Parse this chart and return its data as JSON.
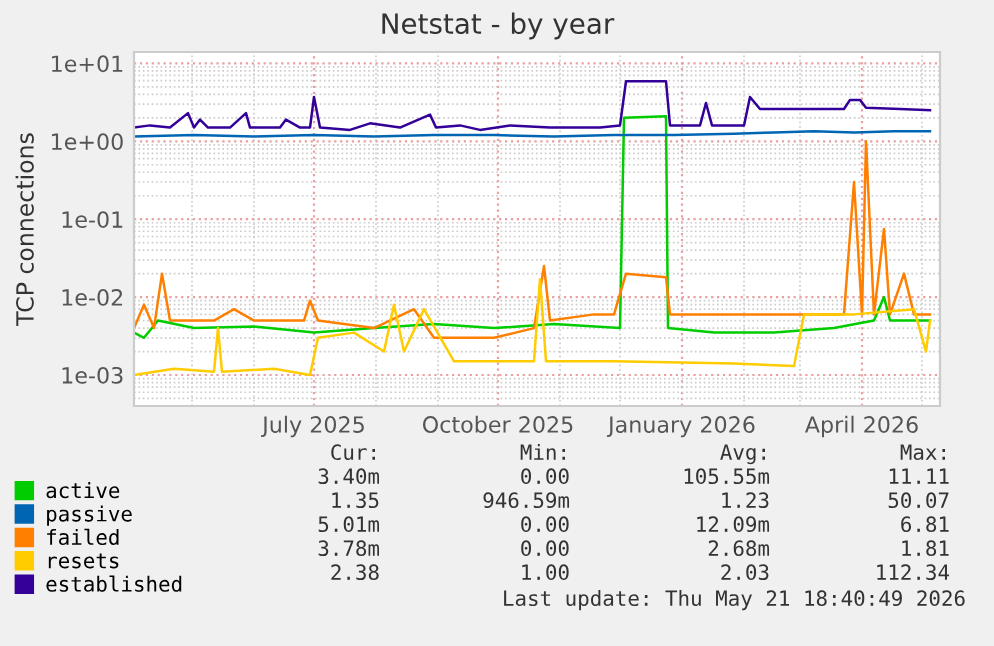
{
  "chart_data": {
    "type": "line",
    "title": "Netstat - by year",
    "ylabel": "TCP connections",
    "log": "y",
    "grid": true,
    "legend": "bottom left",
    "marker": "none",
    "line_style": "solid",
    "xlim": [
      "2025-04-02",
      "2026-05-10"
    ],
    "xticks": [
      {
        "value": "2025-07-01",
        "label": "July 2025"
      },
      {
        "value": "2025-10-01",
        "label": "October 2025"
      },
      {
        "value": "2026-01-01",
        "label": "January 2026"
      },
      {
        "value": "2026-04-01",
        "label": "April 2026"
      }
    ],
    "ylim": [
      0.0004,
      14
    ],
    "yticks": [
      {
        "value": 10,
        "label": "1e+01"
      },
      {
        "value": 1,
        "label": "1e+00"
      },
      {
        "value": 0.1,
        "label": "1e-01"
      },
      {
        "value": 0.01,
        "label": "1e-02"
      },
      {
        "value": 0.001,
        "label": "1e-03"
      }
    ],
    "series": [
      {
        "name": "active",
        "color": "#00cc00",
        "x": [
          "2025-04-02",
          "2025-04-07",
          "2025-04-14",
          "2025-05-02",
          "2025-06-01",
          "2025-07-01",
          "2025-07-31",
          "2025-08-30",
          "2025-09-29",
          "2025-10-29",
          "2025-12-01",
          "2025-12-03",
          "2025-12-24",
          "2025-12-25",
          "2026-01-17",
          "2026-02-16",
          "2026-03-18",
          "2026-04-07",
          "2026-04-12",
          "2026-04-15",
          "2026-05-05"
        ],
        "values": [
          0.0035,
          0.003,
          0.005,
          0.004,
          0.0042,
          0.0035,
          0.004,
          0.0045,
          0.004,
          0.0045,
          0.004,
          2.0,
          2.1,
          0.004,
          0.0035,
          0.0035,
          0.004,
          0.005,
          0.01,
          0.005,
          0.005
        ]
      },
      {
        "name": "passive",
        "color": "#0066b3",
        "x": [
          "2025-04-02",
          "2025-05-02",
          "2025-06-01",
          "2025-07-01",
          "2025-07-31",
          "2025-08-30",
          "2025-09-29",
          "2025-10-29",
          "2025-11-28",
          "2025-12-28",
          "2026-01-27",
          "2026-02-16",
          "2026-03-08",
          "2026-03-28",
          "2026-04-17",
          "2026-05-05"
        ],
        "values": [
          1.15,
          1.2,
          1.15,
          1.2,
          1.15,
          1.2,
          1.2,
          1.15,
          1.2,
          1.2,
          1.25,
          1.3,
          1.35,
          1.3,
          1.35,
          1.35
        ]
      },
      {
        "name": "failed",
        "color": "#ff8000",
        "x": [
          "2025-04-02",
          "2025-04-07",
          "2025-04-12",
          "2025-04-16",
          "2025-04-20",
          "2025-05-12",
          "2025-05-22",
          "2025-06-01",
          "2025-06-26",
          "2025-06-29",
          "2025-07-03",
          "2025-07-31",
          "2025-08-20",
          "2025-08-30",
          "2025-09-29",
          "2025-10-19",
          "2025-10-24",
          "2025-10-27",
          "2025-11-18",
          "2025-11-28",
          "2025-12-04",
          "2025-12-24",
          "2025-12-26",
          "2026-01-27",
          "2026-02-26",
          "2026-03-23",
          "2026-03-28",
          "2026-04-01",
          "2026-04-03",
          "2026-04-07",
          "2026-04-12",
          "2026-04-15",
          "2026-04-22",
          "2026-04-27",
          "2026-05-05"
        ],
        "values": [
          0.004,
          0.008,
          0.004,
          0.02,
          0.005,
          0.005,
          0.007,
          0.005,
          0.005,
          0.009,
          0.005,
          0.004,
          0.007,
          0.003,
          0.003,
          0.004,
          0.025,
          0.005,
          0.006,
          0.006,
          0.02,
          0.018,
          0.006,
          0.006,
          0.006,
          0.006,
          0.3,
          0.006,
          1.0,
          0.006,
          0.075,
          0.006,
          0.02,
          0.006,
          0.006
        ]
      },
      {
        "name": "resets",
        "color": "#ffcc00",
        "x": [
          "2025-04-02",
          "2025-04-22",
          "2025-05-12",
          "2025-05-14",
          "2025-05-16",
          "2025-06-11",
          "2025-06-29",
          "2025-07-03",
          "2025-07-21",
          "2025-08-05",
          "2025-08-10",
          "2025-08-15",
          "2025-08-25",
          "2025-09-09",
          "2025-10-04",
          "2025-10-19",
          "2025-10-22",
          "2025-10-25",
          "2025-11-28",
          "2026-01-27",
          "2026-02-26",
          "2026-03-03",
          "2026-03-28",
          "2026-04-27",
          "2026-05-03",
          "2026-05-05"
        ],
        "values": [
          0.001,
          0.0012,
          0.0011,
          0.004,
          0.0011,
          0.0012,
          0.001,
          0.003,
          0.0035,
          0.002,
          0.008,
          0.002,
          0.007,
          0.0015,
          0.0015,
          0.0015,
          0.017,
          0.0015,
          0.0015,
          0.0014,
          0.0013,
          0.006,
          0.006,
          0.007,
          0.002,
          0.005
        ]
      },
      {
        "name": "established",
        "color": "#330099",
        "x": [
          "2025-04-02",
          "2025-04-10",
          "2025-04-20",
          "2025-04-29",
          "2025-05-02",
          "2025-05-05",
          "2025-05-09",
          "2025-05-20",
          "2025-05-28",
          "2025-05-30",
          "2025-06-14",
          "2025-06-17",
          "2025-06-24",
          "2025-06-29",
          "2025-07-01",
          "2025-07-04",
          "2025-07-19",
          "2025-07-29",
          "2025-08-13",
          "2025-08-28",
          "2025-08-31",
          "2025-09-12",
          "2025-09-22",
          "2025-10-07",
          "2025-10-27",
          "2025-11-21",
          "2025-12-01",
          "2025-12-04",
          "2025-12-24",
          "2025-12-26",
          "2026-01-10",
          "2026-01-13",
          "2026-01-16",
          "2026-02-01",
          "2026-02-04",
          "2026-02-09",
          "2026-03-01",
          "2026-03-23",
          "2026-03-26",
          "2026-03-31",
          "2026-04-03",
          "2026-04-20",
          "2026-05-05"
        ],
        "values": [
          1.5,
          1.6,
          1.5,
          2.3,
          1.5,
          1.9,
          1.5,
          1.5,
          2.3,
          1.5,
          1.5,
          1.9,
          1.5,
          1.5,
          3.7,
          1.5,
          1.4,
          1.7,
          1.5,
          2.2,
          1.5,
          1.6,
          1.4,
          1.6,
          1.5,
          1.5,
          1.6,
          5.9,
          5.9,
          1.6,
          1.6,
          3.1,
          1.6,
          1.6,
          3.7,
          2.6,
          2.6,
          2.6,
          3.4,
          3.4,
          2.7,
          2.6,
          2.5
        ]
      }
    ],
    "annotations": [
      "Cur:",
      "Min:",
      "Avg:",
      "Max:",
      "3.40m",
      "0.00",
      "105.55m",
      "11.11",
      "1.35",
      "946.59m",
      "1.23",
      "50.07",
      "5.01m",
      "0.00",
      "12.09m",
      "6.81",
      "3.78m",
      "0.00",
      "2.68m",
      "1.81",
      "2.38",
      "1.00",
      "2.03",
      "112.34",
      "Last update: Thu May 21 18:40:49 2026"
    ]
  }
}
